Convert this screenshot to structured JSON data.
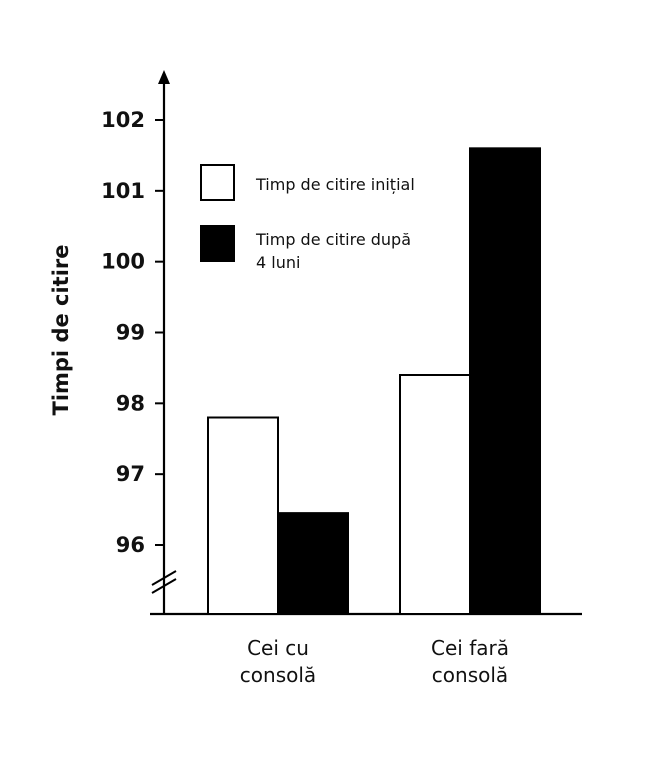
{
  "chart_data": {
    "type": "bar",
    "title": "",
    "xlabel": "",
    "ylabel": "Timpi de citire",
    "categories": [
      [
        "Cei cu",
        "consolă"
      ],
      [
        "Cei fară",
        "consolă"
      ]
    ],
    "series": [
      {
        "name": "Timp de citire inițial",
        "values": [
          97.8,
          98.4
        ],
        "color": "#ffffff"
      },
      {
        "name": "Timp de citire după 4 luni",
        "values": [
          96.45,
          101.6
        ],
        "color": "#000000"
      }
    ],
    "ylim": [
      95,
      102.7
    ],
    "yticks": [
      "96",
      "97",
      "98",
      "99",
      "100",
      "101",
      "102"
    ],
    "axis_break": true,
    "grid": false,
    "legend": {
      "placement": "top-left",
      "items": [
        {
          "lines": [
            "Timp de citire inițial"
          ],
          "swatch": "#ffffff"
        },
        {
          "lines": [
            "Timp de citire după",
            "4 luni"
          ],
          "swatch": "#000000"
        }
      ]
    }
  }
}
